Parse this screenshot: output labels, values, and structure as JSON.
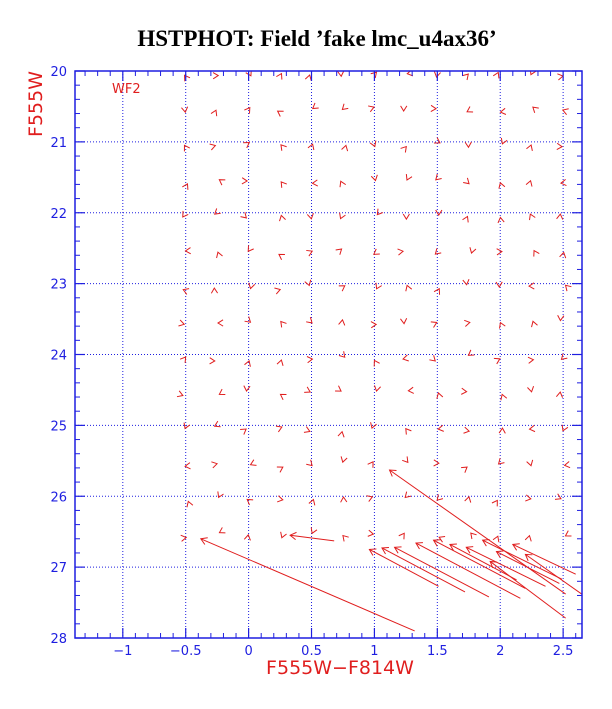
{
  "chart_data": {
    "type": "scatter",
    "title": "HSTPHOT: Field ’fake lmc_u4ax36’",
    "xlabel": "F555W−F814W",
    "ylabel": "F555W",
    "panel_label": "WF2",
    "xlim": [
      -1.38,
      2.65
    ],
    "ylim": [
      20,
      28
    ],
    "y_inverted": true,
    "grid": true,
    "x_ticks": [
      -1,
      -0.5,
      0,
      0.5,
      1,
      1.5,
      2,
      2.5
    ],
    "x_tick_labels": [
      "−1",
      "−0.5",
      "0",
      "0.5",
      "1",
      "1.5",
      "2",
      "2.5"
    ],
    "y_ticks": [
      20,
      21,
      22,
      23,
      24,
      25,
      26,
      27,
      28
    ],
    "y_tick_labels": [
      "20",
      "21",
      "22",
      "23",
      "24",
      "25",
      "26",
      "27",
      "28"
    ],
    "colors": {
      "frame": "#1e1ee0",
      "grid": "#1e1ee0",
      "arrows": "#e01e1e",
      "title": "#000000"
    },
    "grid_x_colors": [
      -0.5,
      -0.25,
      0,
      0.25,
      0.5,
      0.75,
      1,
      1.25,
      1.5,
      1.75,
      2,
      2.25,
      2.5
    ],
    "grid_y_mags": [
      20.05,
      20.55,
      21.05,
      21.55,
      22.05,
      22.55,
      23.05,
      23.55,
      24.05,
      24.55,
      25.05,
      25.55,
      26.05,
      26.55
    ],
    "long_vectors": [
      {
        "x": -0.38,
        "y": 26.6,
        "dx": 1.7,
        "dy": 1.3
      },
      {
        "x": 0.33,
        "y": 26.55,
        "dx": 0.35,
        "dy": 0.08
      },
      {
        "x": 1.12,
        "y": 25.63,
        "dx": 1.4,
        "dy": 1.75
      },
      {
        "x": 0.96,
        "y": 26.75,
        "dx": 0.55,
        "dy": 0.52
      },
      {
        "x": 1.06,
        "y": 26.73,
        "dx": 0.66,
        "dy": 0.62
      },
      {
        "x": 1.16,
        "y": 26.72,
        "dx": 0.75,
        "dy": 0.7
      },
      {
        "x": 1.33,
        "y": 26.66,
        "dx": 0.83,
        "dy": 0.78
      },
      {
        "x": 1.47,
        "y": 26.62,
        "dx": 0.73,
        "dy": 0.68
      },
      {
        "x": 1.6,
        "y": 26.68,
        "dx": 0.53,
        "dy": 0.5
      },
      {
        "x": 1.73,
        "y": 26.72,
        "dx": 0.63,
        "dy": 0.55
      },
      {
        "x": 1.86,
        "y": 26.62,
        "dx": 0.63,
        "dy": 0.55
      },
      {
        "x": 1.92,
        "y": 26.92,
        "dx": 0.6,
        "dy": 0.8
      },
      {
        "x": 1.97,
        "y": 26.78,
        "dx": 0.5,
        "dy": 0.45
      },
      {
        "x": 2.1,
        "y": 26.68,
        "dx": 0.5,
        "dy": 0.42
      },
      {
        "x": 2.2,
        "y": 26.82,
        "dx": 0.48,
        "dy": 0.6
      }
    ]
  }
}
